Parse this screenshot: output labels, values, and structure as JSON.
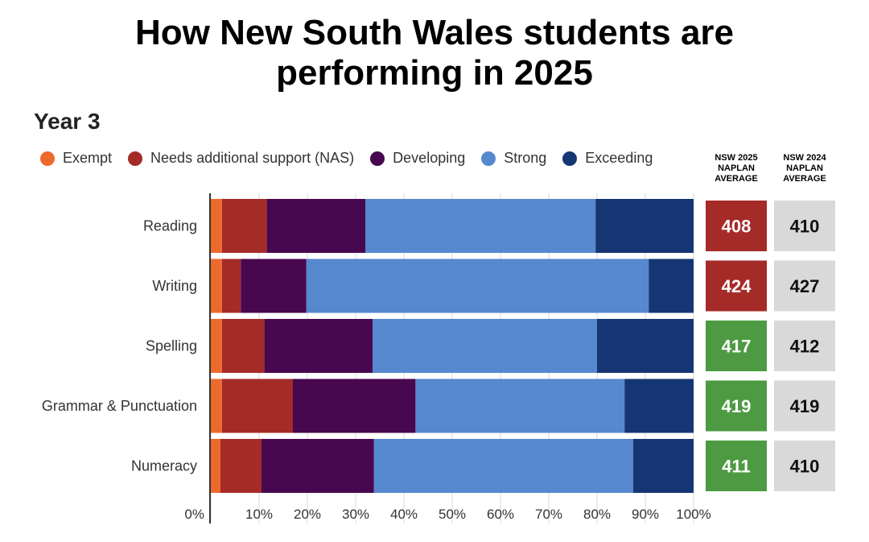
{
  "title_line1": "How New South Wales students are",
  "title_line2": "performing in 2025",
  "subtitle": "Year 3",
  "colors": {
    "exempt": "#ec6a2c",
    "nas": "#a52b28",
    "developing": "#48084f",
    "strong": "#5688cd",
    "exceeding": "#163673",
    "avg_red": "#a52b28",
    "avg_green": "#4e9a43",
    "avg_grey": "#d9d9d9"
  },
  "legend": [
    {
      "label": "Exempt",
      "color": "#ec6a2c"
    },
    {
      "label": "Needs additional support (NAS)",
      "color": "#a52b28"
    },
    {
      "label": "Developing",
      "color": "#48084f"
    },
    {
      "label": "Strong",
      "color": "#5688cd"
    },
    {
      "label": "Exceeding",
      "color": "#163673"
    }
  ],
  "col_2025": {
    "line1": "NSW 2025",
    "line2": "NAPLAN",
    "line3": "AVERAGE"
  },
  "col_2024": {
    "line1": "NSW 2024",
    "line2": "NAPLAN",
    "line3": "AVERAGE"
  },
  "chart_data": {
    "type": "bar",
    "orientation": "horizontal",
    "stacked": true,
    "title": "How New South Wales students are performing in 2025",
    "subtitle": "Year 3",
    "categories": [
      "Reading",
      "Writing",
      "Spelling",
      "Grammar & Punctuation",
      "Numeracy"
    ],
    "series": [
      {
        "name": "Exempt",
        "values": [
          2.3,
          2.3,
          2.3,
          2.3,
          2.0
        ]
      },
      {
        "name": "Needs additional support (NAS)",
        "values": [
          9.3,
          3.9,
          8.8,
          14.7,
          8.5
        ]
      },
      {
        "name": "Developing",
        "values": [
          20.4,
          13.6,
          22.4,
          25.4,
          23.3
        ]
      },
      {
        "name": "Strong",
        "values": [
          47.7,
          70.9,
          46.5,
          43.3,
          53.7
        ]
      },
      {
        "name": "Exceeding",
        "values": [
          20.3,
          9.3,
          20.0,
          14.3,
          12.5
        ]
      }
    ],
    "xticks": [
      "0%",
      "10%",
      "20%",
      "30%",
      "40%",
      "50%",
      "60%",
      "70%",
      "80%",
      "90%",
      "100%"
    ],
    "xlim": [
      0,
      100
    ],
    "legend_position": "top",
    "naplan_average_2025": [
      408,
      424,
      417,
      419,
      411
    ],
    "naplan_average_2024": [
      410,
      427,
      412,
      419,
      410
    ],
    "avg_2025_status": [
      "below",
      "below",
      "above",
      "equal",
      "above"
    ]
  }
}
